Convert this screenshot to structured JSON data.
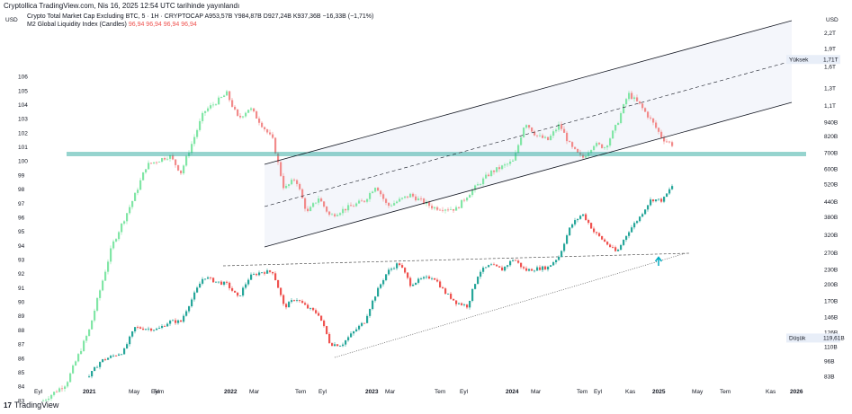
{
  "header": {
    "published": "Cryptollica TradingView.com, Nis 16, 2025 12:54 UTC tarihinde yayınlandı",
    "currency_left": "USD",
    "currency_right": "USD"
  },
  "legend": {
    "symbol": "Crypto Total Market Cap Excluding BTC, 5 · 1H · CRYPTOCAP",
    "ohlc": "A953,57B  Y984,87B  D927,24B  K937,36B  −16,33B (−1,71%)",
    "m2_name": "M2 Global Liquidity Index (Candles)",
    "m2_values": "96,94  96,94  96,94  96,94"
  },
  "branding": {
    "logo": "17",
    "name": "TradingView"
  },
  "chart_data": {
    "type": "candlestick",
    "title": "Crypto Total Market Cap Excluding BTC, 5 · 1H · CRYPTOCAP",
    "left_axis": {
      "label": "USD",
      "ticks": [
        "106",
        "105",
        "104",
        "103",
        "102",
        "101",
        "100",
        "99",
        "98",
        "97",
        "96",
        "95",
        "94",
        "93",
        "92",
        "91",
        "90",
        "89",
        "88",
        "87",
        "86",
        "85",
        "84",
        "83"
      ],
      "range": [
        82.5,
        107.2
      ]
    },
    "right_axis": {
      "label": "USD",
      "scale": "log",
      "ticks": [
        "2,2T",
        "1,9T",
        "1,6T",
        "1,3T",
        "1,1T",
        "940B",
        "820B",
        "700B",
        "600B",
        "520B",
        "440B",
        "380B",
        "320B",
        "270B",
        "230B",
        "200B",
        "170B",
        "146B",
        "126B",
        "110B",
        "96B",
        "83B"
      ],
      "badges": [
        {
          "label": "Yüksek",
          "value": "1,71T"
        },
        {
          "label": "Düşük",
          "value": "119,61B"
        }
      ]
    },
    "x_axis": {
      "ticks": [
        "Eyl",
        "2021",
        "May",
        "Tem",
        "Eyl",
        "2022",
        "Mar",
        "Tem",
        "Eyl",
        "2023",
        "Mar",
        "Tem",
        "Eyl",
        "2024",
        "Mar",
        "Tem",
        "Eyl",
        "Kas",
        "2025",
        "May",
        "Tem",
        "Kas",
        "2026"
      ],
      "bold": [
        "2021",
        "2022",
        "2023",
        "2024",
        "2025",
        "2026"
      ]
    },
    "series": [
      {
        "name": "M2 Global Liquidity Index (Candles)",
        "scale": "left",
        "keypoints": [
          [
            "2020-09",
            83.0
          ],
          [
            "2020-11",
            84.2
          ],
          [
            "2021-01",
            88.0
          ],
          [
            "2021-03",
            94.0
          ],
          [
            "2021-05",
            97.6
          ],
          [
            "2021-06",
            99.7
          ],
          [
            "2021-08",
            100.4
          ],
          [
            "2021-09",
            99.2
          ],
          [
            "2021-11",
            103.5
          ],
          [
            "2022-01",
            104.8
          ],
          [
            "2022-02",
            103.0
          ],
          [
            "2022-03",
            103.8
          ],
          [
            "2022-05",
            101.5
          ],
          [
            "2022-06",
            98.0
          ],
          [
            "2022-07",
            98.8
          ],
          [
            "2022-08",
            96.3
          ],
          [
            "2022-09",
            97.4
          ],
          [
            "2022-10",
            96.1
          ],
          [
            "2022-11",
            96.5
          ],
          [
            "2023-01",
            97.2
          ],
          [
            "2023-02",
            98.3
          ],
          [
            "2023-03",
            96.8
          ],
          [
            "2023-05",
            97.6
          ],
          [
            "2023-07",
            96.7
          ],
          [
            "2023-09",
            96.6
          ],
          [
            "2023-10",
            97.6
          ],
          [
            "2023-12",
            99.2
          ],
          [
            "2024-02",
            100.0
          ],
          [
            "2024-03",
            102.8
          ],
          [
            "2024-04",
            101.8
          ],
          [
            "2024-05",
            101.5
          ],
          [
            "2024-06",
            102.6
          ],
          [
            "2024-07",
            101.0
          ],
          [
            "2024-08",
            100.2
          ],
          [
            "2024-09",
            101.2
          ],
          [
            "2024-10",
            101.0
          ],
          [
            "2024-11",
            102.6
          ],
          [
            "2024-12",
            104.8
          ],
          [
            "2025-01",
            104.0
          ],
          [
            "2025-02",
            102.9
          ],
          [
            "2025-03",
            101.6
          ],
          [
            "2025-04",
            101.1
          ]
        ]
      },
      {
        "name": "Crypto Total Market Cap Excluding BTC",
        "scale": "right",
        "keypoints": [
          [
            "2021-01",
            83
          ],
          [
            "2021-02",
            96
          ],
          [
            "2021-04",
            105
          ],
          [
            "2021-05",
            132
          ],
          [
            "2021-07",
            130
          ],
          [
            "2021-08",
            140
          ],
          [
            "2021-09",
            140
          ],
          [
            "2021-10",
            175
          ],
          [
            "2021-11",
            215
          ],
          [
            "2021-12",
            205
          ],
          [
            "2022-01",
            200
          ],
          [
            "2022-02",
            175
          ],
          [
            "2022-03",
            215
          ],
          [
            "2022-04",
            225
          ],
          [
            "2022-05",
            225
          ],
          [
            "2022-06",
            160
          ],
          [
            "2022-07",
            175
          ],
          [
            "2022-08",
            160
          ],
          [
            "2022-09",
            150
          ],
          [
            "2022-10",
            113
          ],
          [
            "2022-11",
            112
          ],
          [
            "2023-01",
            140
          ],
          [
            "2023-03",
            225
          ],
          [
            "2023-04",
            245
          ],
          [
            "2023-05",
            200
          ],
          [
            "2023-06",
            210
          ],
          [
            "2023-07",
            215
          ],
          [
            "2023-08",
            185
          ],
          [
            "2023-09",
            168
          ],
          [
            "2023-10",
            162
          ],
          [
            "2023-11",
            225
          ],
          [
            "2023-12",
            240
          ],
          [
            "2024-01",
            230
          ],
          [
            "2024-02",
            255
          ],
          [
            "2024-03",
            228
          ],
          [
            "2024-04",
            232
          ],
          [
            "2024-05",
            235
          ],
          [
            "2024-06",
            262
          ],
          [
            "2024-07",
            350
          ],
          [
            "2024-08",
            392
          ],
          [
            "2024-09",
            330
          ],
          [
            "2024-10",
            298
          ],
          [
            "2024-11",
            270
          ],
          [
            "2024-12",
            330
          ],
          [
            "2025-01",
            380
          ],
          [
            "2025-02",
            450
          ],
          [
            "2025-03",
            445
          ],
          [
            "2025-04",
            525
          ]
        ]
      }
    ],
    "annotations": [
      {
        "type": "horizontal_band",
        "value": 98.85,
        "color": "#26a69a"
      },
      {
        "type": "rising_channel",
        "color": "#131722"
      },
      {
        "type": "trendline_support",
        "style": "dotted"
      },
      {
        "type": "trendline_resistance",
        "style": "dashed"
      },
      {
        "type": "arrow_up",
        "color": "#00acc1"
      }
    ],
    "colors": {
      "up": "#26a69a",
      "down": "#ef5350",
      "m2_up": "#81e6a6",
      "m2_down": "#f28b8b"
    }
  }
}
